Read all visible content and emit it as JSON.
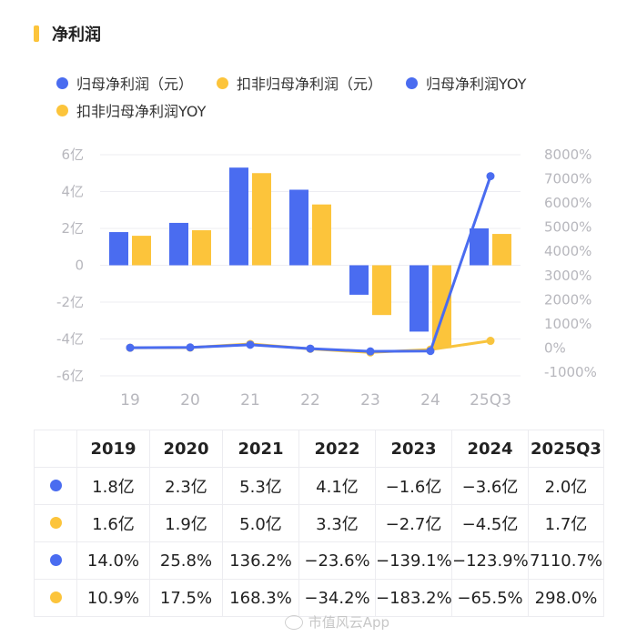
{
  "header": {
    "title": "净利润"
  },
  "colors": {
    "blue": "#4a6cf0",
    "yellow": "#fcc43b",
    "blue_line": "#4a6cf0",
    "yellow_line": "#f8c43e",
    "accent": "#fcc43b"
  },
  "legend": [
    {
      "label": "归母净利润（元）",
      "color": "#4a6cf0"
    },
    {
      "label": "扣非归母净利润（元）",
      "color": "#fcc43b"
    },
    {
      "label": "归母净利润YOY",
      "color": "#4a6cf0"
    },
    {
      "label": "扣非归母净利润YOY",
      "color": "#fcc43b"
    }
  ],
  "chart_data": {
    "type": "bar",
    "categories": [
      "19",
      "20",
      "21",
      "22",
      "23",
      "24",
      "25Q3"
    ],
    "y_left": {
      "ticks": [
        "6亿",
        "4亿",
        "2亿",
        "0",
        "-2亿",
        "-4亿",
        "-6亿"
      ],
      "range": [
        -6,
        6
      ],
      "unit": "亿"
    },
    "y_right": {
      "ticks": [
        "8000%",
        "7000%",
        "6000%",
        "5000%",
        "4000%",
        "3000%",
        "2000%",
        "1000%",
        "0%",
        "-1000%"
      ],
      "range": [
        -1000,
        8000
      ]
    },
    "series": [
      {
        "name": "归母净利润（元）",
        "kind": "bar",
        "axis": "left",
        "values": [
          1.8,
          2.3,
          5.3,
          4.1,
          -1.6,
          -3.6,
          2.0
        ]
      },
      {
        "name": "扣非归母净利润（元）",
        "kind": "bar",
        "axis": "left",
        "values": [
          1.6,
          1.9,
          5.0,
          3.3,
          -2.7,
          -4.5,
          1.7
        ]
      },
      {
        "name": "归母净利润YOY",
        "kind": "line",
        "axis": "right",
        "values": [
          14.0,
          25.8,
          136.2,
          -23.6,
          -139.1,
          -123.9,
          7110.7
        ]
      },
      {
        "name": "扣非归母净利润YOY",
        "kind": "line",
        "axis": "right",
        "values": [
          10.9,
          17.5,
          168.3,
          -34.2,
          -183.2,
          -65.5,
          298.0
        ]
      }
    ]
  },
  "table": {
    "headers": [
      "",
      "2019",
      "2020",
      "2021",
      "2022",
      "2023",
      "2024",
      "2025Q3"
    ],
    "rows": [
      {
        "color": "#4a6cf0",
        "cells": [
          "1.8亿",
          "2.3亿",
          "5.3亿",
          "4.1亿",
          "−1.6亿",
          "−3.6亿",
          "2.0亿"
        ]
      },
      {
        "color": "#fcc43b",
        "cells": [
          "1.6亿",
          "1.9亿",
          "5.0亿",
          "3.3亿",
          "−2.7亿",
          "−4.5亿",
          "1.7亿"
        ]
      },
      {
        "color": "#4a6cf0",
        "cells": [
          "14.0%",
          "25.8%",
          "136.2%",
          "−23.6%",
          "−139.1%",
          "−123.9%",
          "7110.7%"
        ]
      },
      {
        "color": "#fcc43b",
        "cells": [
          "10.9%",
          "17.5%",
          "168.3%",
          "−34.2%",
          "−183.2%",
          "−65.5%",
          "298.0%"
        ]
      }
    ]
  },
  "watermark": {
    "text": "市值风云App"
  }
}
